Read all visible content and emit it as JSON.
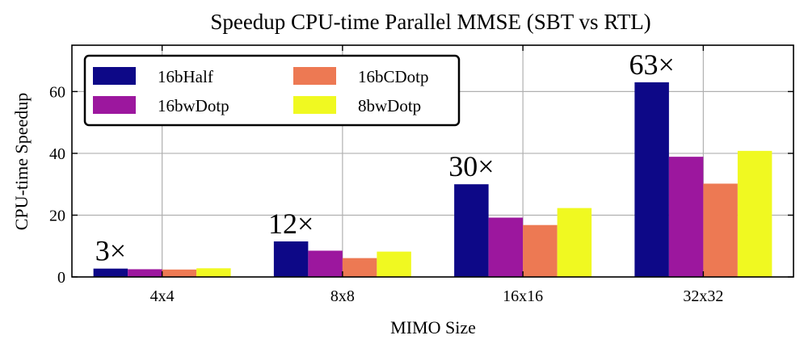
{
  "chart_data": {
    "type": "bar",
    "title": "Speedup CPU-time Parallel MMSE (SBT vs RTL)",
    "xlabel": "MIMO Size",
    "ylabel": "CPU-time Speedup",
    "categories": [
      "4x4",
      "8x8",
      "16x16",
      "32x32"
    ],
    "ylim": [
      0,
      75
    ],
    "yticks": [
      0,
      20,
      40,
      60
    ],
    "grid": true,
    "legend_position": "top-left",
    "series": [
      {
        "name": "16bHalf",
        "color": "#0d0887",
        "values": [
          2.7,
          11.5,
          30,
          63
        ]
      },
      {
        "name": "16bwDotp",
        "color": "#9c179e",
        "values": [
          2.5,
          8.5,
          19.2,
          38.9
        ]
      },
      {
        "name": "16bCDotp",
        "color": "#ed7953",
        "values": [
          2.4,
          6.1,
          16.8,
          30.2
        ]
      },
      {
        "name": "8bwDotp",
        "color": "#f0f921",
        "values": [
          2.8,
          8.2,
          22.3,
          40.8
        ]
      }
    ],
    "annotations": [
      "3×",
      "12×",
      "30×",
      "63×"
    ]
  }
}
